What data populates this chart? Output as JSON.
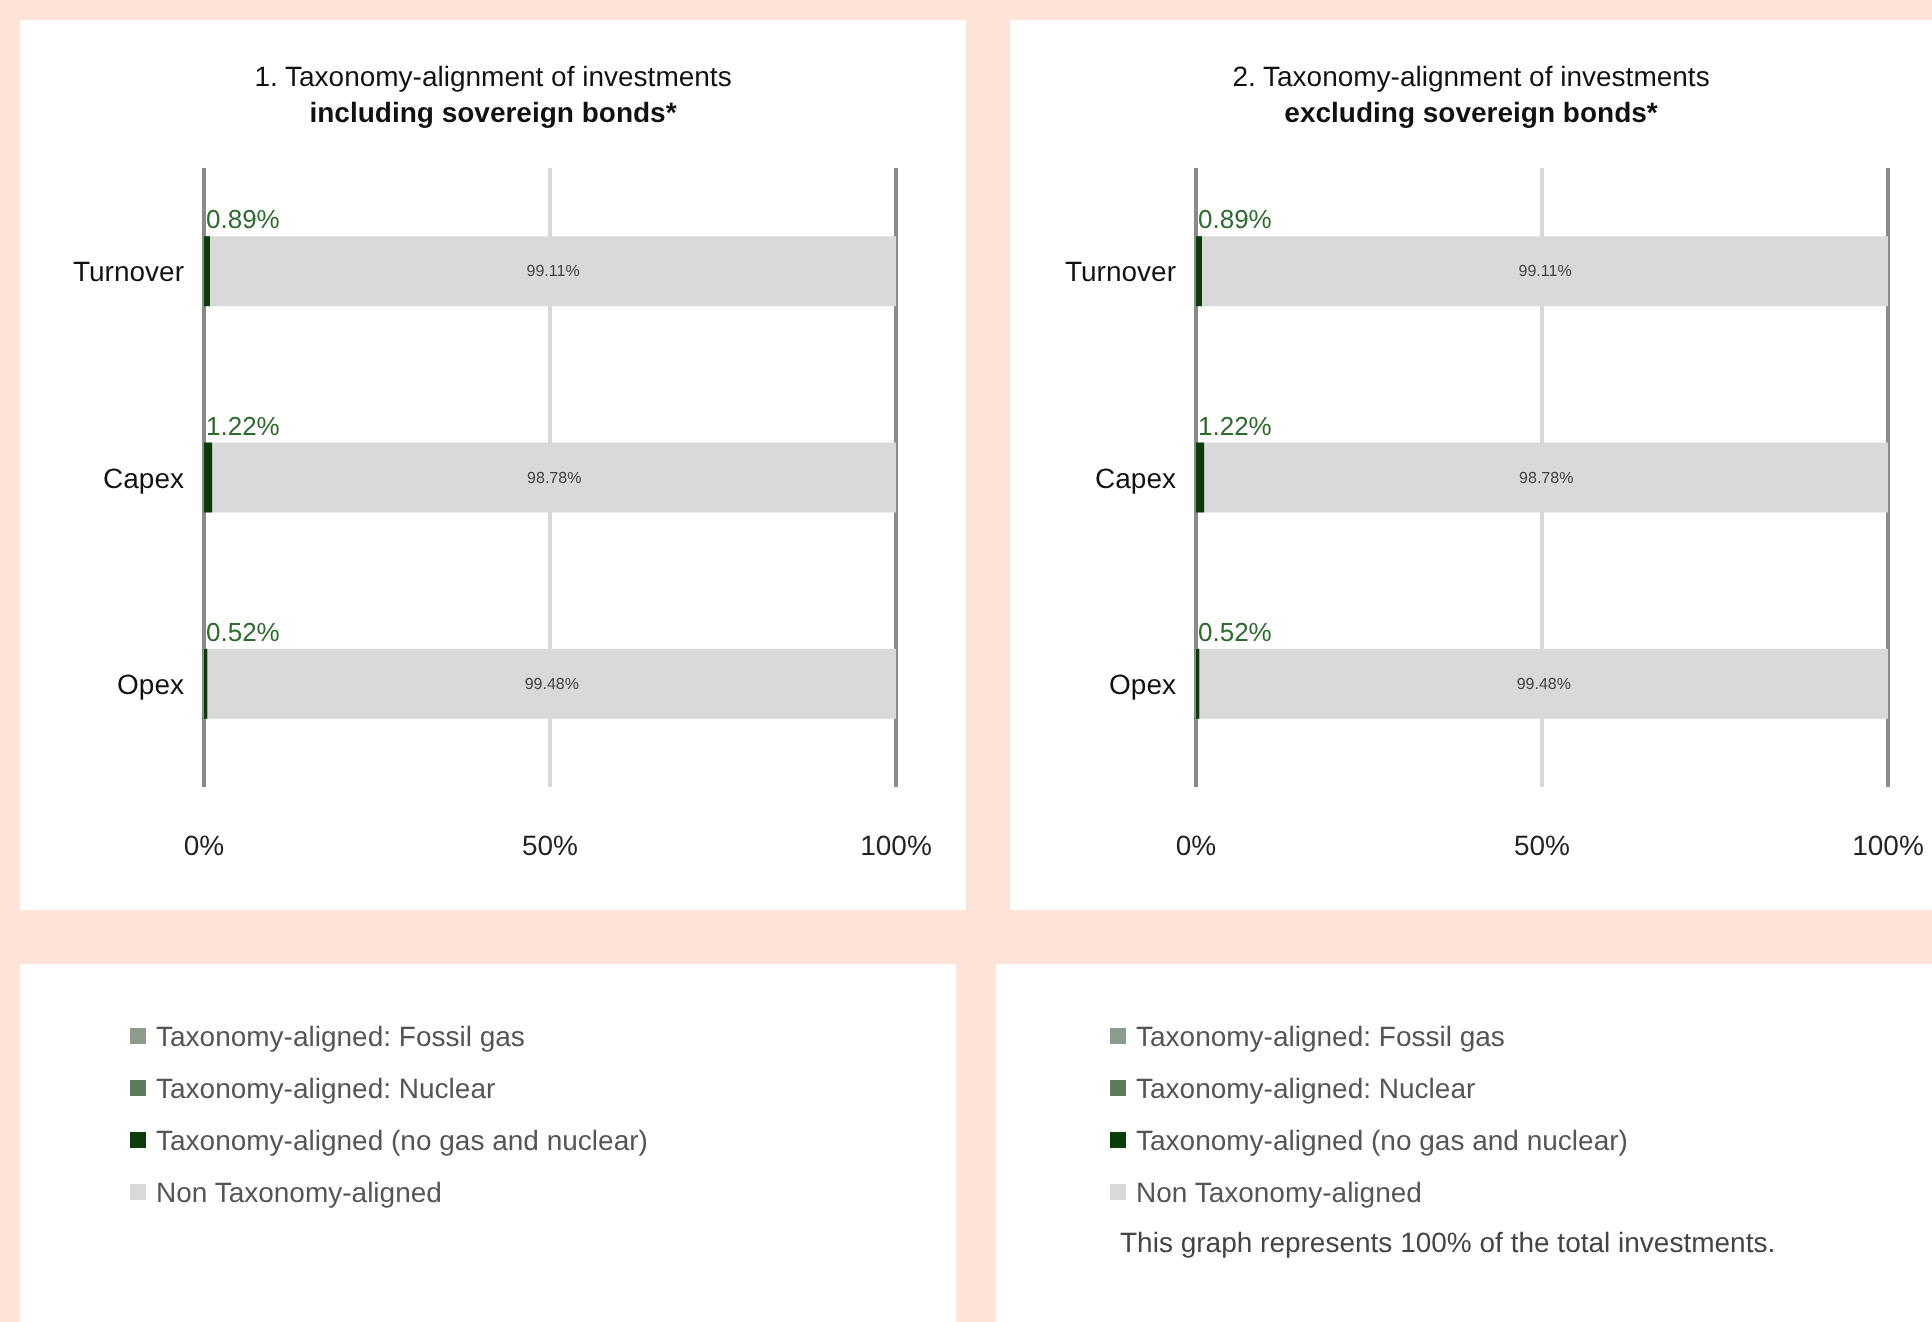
{
  "chart_data": [
    {
      "type": "bar",
      "orientation": "horizontal",
      "stacked": true,
      "title": "1. Taxonomy-alignment of investments",
      "subtitle": "including sovereign bonds*",
      "categories": [
        "Turnover",
        "Capex",
        "Opex"
      ],
      "xlim": [
        0,
        100
      ],
      "xticks": [
        {
          "value": 0,
          "label": "0%"
        },
        {
          "value": 50,
          "label": "50%"
        },
        {
          "value": 100,
          "label": "100%"
        }
      ],
      "grid": "x",
      "legend": "bottom",
      "series": [
        {
          "name": "Taxonomy-aligned: Fossil gas",
          "color": "#8c9c8c",
          "values": [
            0,
            0,
            0
          ]
        },
        {
          "name": "Taxonomy-aligned: Nuclear",
          "color": "#5c7a5c",
          "values": [
            0,
            0,
            0
          ]
        },
        {
          "name": "Taxonomy-aligned (no gas and nuclear)",
          "color": "#0b3d0b",
          "values": [
            0.89,
            1.22,
            0.52
          ],
          "value_labels": [
            "0.89%",
            "1.22%",
            "0.52%"
          ]
        },
        {
          "name": "Non Taxonomy-aligned",
          "color": "#d9d9d9",
          "values": [
            99.11,
            98.78,
            99.48
          ],
          "value_labels": [
            "99.11%",
            "98.78%",
            "99.48%"
          ]
        }
      ]
    },
    {
      "type": "bar",
      "orientation": "horizontal",
      "stacked": true,
      "title": "2. Taxonomy-alignment of investments",
      "subtitle": "excluding sovereign bonds*",
      "categories": [
        "Turnover",
        "Capex",
        "Opex"
      ],
      "xlim": [
        0,
        100
      ],
      "xticks": [
        {
          "value": 0,
          "label": "0%"
        },
        {
          "value": 50,
          "label": "50%"
        },
        {
          "value": 100,
          "label": "100%"
        }
      ],
      "grid": "x",
      "legend": "bottom",
      "annotations": [
        "This graph represents 100% of the total investments."
      ],
      "series": [
        {
          "name": "Taxonomy-aligned: Fossil gas",
          "color": "#8c9c8c",
          "values": [
            0,
            0,
            0
          ]
        },
        {
          "name": "Taxonomy-aligned: Nuclear",
          "color": "#5c7a5c",
          "values": [
            0,
            0,
            0
          ]
        },
        {
          "name": "Taxonomy-aligned (no gas and nuclear)",
          "color": "#0b3d0b",
          "values": [
            0.89,
            1.22,
            0.52
          ],
          "value_labels": [
            "0.89%",
            "1.22%",
            "0.52%"
          ]
        },
        {
          "name": "Non Taxonomy-aligned",
          "color": "#d9d9d9",
          "values": [
            99.11,
            98.78,
            99.48
          ],
          "value_labels": [
            "99.11%",
            "98.78%",
            "99.48%"
          ]
        }
      ]
    }
  ]
}
